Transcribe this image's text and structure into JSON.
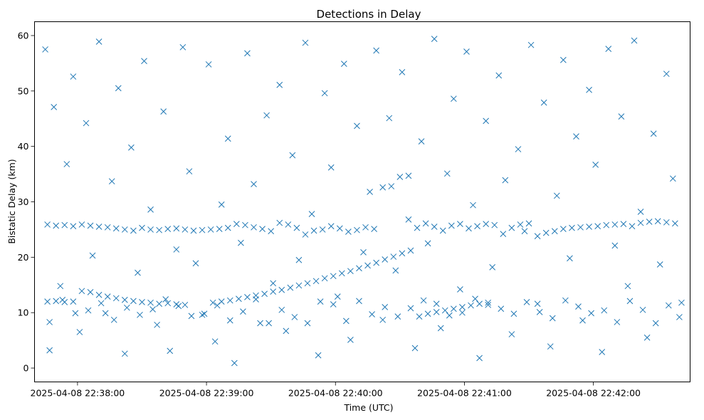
{
  "chart_data": {
    "type": "scatter",
    "title": "Detections in Delay",
    "xlabel": "Time (UTC)",
    "ylabel": "Bistatic Delay (km)",
    "x_tick_labels": [
      "2025-04-08 22:38:00",
      "2025-04-08 22:39:00",
      "2025-04-08 22:40:00",
      "2025-04-08 22:41:00",
      "2025-04-08 22:42:00"
    ],
    "x_ticks": [
      "2025-04-08 22:38:00",
      "2025-04-08 22:39:00",
      "2025-04-08 22:40:00",
      "2025-04-08 22:41:00",
      "2025-04-08 22:42:00"
    ],
    "y_ticks": [
      0,
      10,
      20,
      30,
      40,
      50,
      60
    ],
    "xlim": [
      "2025-04-08 22:37:40",
      "2025-04-08 22:42:45"
    ],
    "ylim": [
      -2.5,
      62.5
    ],
    "marker": "x",
    "color": "#1f77b4",
    "grid": false,
    "series": [
      {
        "x": [
          "2025-04-08 22:37:45",
          "2025-04-08 22:37:47",
          "2025-04-08 22:37:49",
          "2025-04-08 22:37:52",
          "2025-04-08 22:37:55",
          "2025-04-08 22:37:58",
          "2025-04-08 22:38:01",
          "2025-04-08 22:38:04",
          "2025-04-08 22:38:07",
          "2025-04-08 22:38:10",
          "2025-04-08 22:38:13",
          "2025-04-08 22:38:16",
          "2025-04-08 22:38:19",
          "2025-04-08 22:38:22",
          "2025-04-08 22:38:25",
          "2025-04-08 22:38:28",
          "2025-04-08 22:38:31",
          "2025-04-08 22:38:34",
          "2025-04-08 22:38:37",
          "2025-04-08 22:38:40",
          "2025-04-08 22:38:43",
          "2025-04-08 22:38:46",
          "2025-04-08 22:38:49",
          "2025-04-08 22:38:52",
          "2025-04-08 22:38:55",
          "2025-04-08 22:38:58",
          "2025-04-08 22:39:01",
          "2025-04-08 22:39:04",
          "2025-04-08 22:39:07",
          "2025-04-08 22:39:10",
          "2025-04-08 22:39:13",
          "2025-04-08 22:39:16",
          "2025-04-08 22:39:19",
          "2025-04-08 22:39:22",
          "2025-04-08 22:39:25",
          "2025-04-08 22:39:28",
          "2025-04-08 22:39:31",
          "2025-04-08 22:39:34",
          "2025-04-08 22:39:37",
          "2025-04-08 22:39:40",
          "2025-04-08 22:39:43",
          "2025-04-08 22:39:46",
          "2025-04-08 22:39:49",
          "2025-04-08 22:39:52",
          "2025-04-08 22:39:55",
          "2025-04-08 22:39:58",
          "2025-04-08 22:40:01",
          "2025-04-08 22:40:04",
          "2025-04-08 22:40:07",
          "2025-04-08 22:40:10",
          "2025-04-08 22:40:13",
          "2025-04-08 22:40:16",
          "2025-04-08 22:40:19",
          "2025-04-08 22:40:22",
          "2025-04-08 22:40:25",
          "2025-04-08 22:40:28",
          "2025-04-08 22:40:31",
          "2025-04-08 22:40:34",
          "2025-04-08 22:40:37",
          "2025-04-08 22:40:40",
          "2025-04-08 22:40:43",
          "2025-04-08 22:40:46",
          "2025-04-08 22:40:49",
          "2025-04-08 22:40:52",
          "2025-04-08 22:40:55",
          "2025-04-08 22:40:58",
          "2025-04-08 22:41:01",
          "2025-04-08 22:41:04",
          "2025-04-08 22:41:07",
          "2025-04-08 22:41:10",
          "2025-04-08 22:41:13",
          "2025-04-08 22:41:16",
          "2025-04-08 22:41:19",
          "2025-04-08 22:41:22",
          "2025-04-08 22:41:25",
          "2025-04-08 22:41:28",
          "2025-04-08 22:41:31",
          "2025-04-08 22:41:34",
          "2025-04-08 22:41:37",
          "2025-04-08 22:41:40",
          "2025-04-08 22:41:43",
          "2025-04-08 22:41:46",
          "2025-04-08 22:41:49",
          "2025-04-08 22:41:52",
          "2025-04-08 22:41:55",
          "2025-04-08 22:41:58",
          "2025-04-08 22:42:01",
          "2025-04-08 22:42:04",
          "2025-04-08 22:42:07",
          "2025-04-08 22:42:10",
          "2025-04-08 22:42:13",
          "2025-04-08 22:42:16",
          "2025-04-08 22:42:19",
          "2025-04-08 22:42:22",
          "2025-04-08 22:42:25",
          "2025-04-08 22:42:28",
          "2025-04-08 22:42:31",
          "2025-04-08 22:42:34",
          "2025-04-08 22:42:37",
          "2025-04-08 22:42:40",
          "2025-04-08 22:37:46",
          "2025-04-08 22:37:50",
          "2025-04-08 22:37:54",
          "2025-04-08 22:37:58",
          "2025-04-08 22:38:02",
          "2025-04-08 22:38:06",
          "2025-04-08 22:38:10",
          "2025-04-08 22:38:14",
          "2025-04-08 22:38:18",
          "2025-04-08 22:38:22",
          "2025-04-08 22:38:26",
          "2025-04-08 22:38:30",
          "2025-04-08 22:38:34",
          "2025-04-08 22:38:38",
          "2025-04-08 22:38:42",
          "2025-04-08 22:38:46",
          "2025-04-08 22:38:50",
          "2025-04-08 22:38:54",
          "2025-04-08 22:38:58",
          "2025-04-08 22:39:02",
          "2025-04-08 22:39:06",
          "2025-04-08 22:39:10",
          "2025-04-08 22:39:14",
          "2025-04-08 22:39:18",
          "2025-04-08 22:39:22",
          "2025-04-08 22:39:26",
          "2025-04-08 22:39:30",
          "2025-04-08 22:39:34",
          "2025-04-08 22:39:38",
          "2025-04-08 22:39:42",
          "2025-04-08 22:39:46",
          "2025-04-08 22:39:50",
          "2025-04-08 22:39:54",
          "2025-04-08 22:39:58",
          "2025-04-08 22:40:02",
          "2025-04-08 22:40:06",
          "2025-04-08 22:40:10",
          "2025-04-08 22:40:14",
          "2025-04-08 22:40:18",
          "2025-04-08 22:40:22",
          "2025-04-08 22:40:26",
          "2025-04-08 22:40:30",
          "2025-04-08 22:40:34",
          "2025-04-08 22:40:38",
          "2025-04-08 22:40:42",
          "2025-04-08 22:40:46",
          "2025-04-08 22:40:50",
          "2025-04-08 22:40:54",
          "2025-04-08 22:40:58",
          "2025-04-08 22:41:02",
          "2025-04-08 22:41:06",
          "2025-04-08 22:41:10",
          "2025-04-08 22:41:14",
          "2025-04-08 22:41:18",
          "2025-04-08 22:41:22",
          "2025-04-08 22:41:26",
          "2025-04-08 22:41:30",
          "2025-04-08 22:41:34",
          "2025-04-08 22:41:38",
          "2025-04-08 22:41:42",
          "2025-04-08 22:41:46",
          "2025-04-08 22:41:50",
          "2025-04-08 22:41:54",
          "2025-04-08 22:41:58",
          "2025-04-08 22:42:02",
          "2025-04-08 22:42:06",
          "2025-04-08 22:42:10",
          "2025-04-08 22:42:14",
          "2025-04-08 22:42:18",
          "2025-04-08 22:42:22",
          "2025-04-08 22:42:26",
          "2025-04-08 22:42:30",
          "2025-04-08 22:42:34",
          "2025-04-08 22:42:38",
          "2025-04-08 22:37:46",
          "2025-04-08 22:37:50",
          "2025-04-08 22:37:54",
          "2025-04-08 22:37:58",
          "2025-04-08 22:38:02",
          "2025-04-08 22:38:06",
          "2025-04-08 22:38:10",
          "2025-04-08 22:38:14",
          "2025-04-08 22:38:18",
          "2025-04-08 22:38:22",
          "2025-04-08 22:38:26",
          "2025-04-08 22:38:30",
          "2025-04-08 22:38:34",
          "2025-04-08 22:38:38",
          "2025-04-08 22:38:42",
          "2025-04-08 22:38:46",
          "2025-04-08 22:38:50",
          "2025-04-08 22:39:03",
          "2025-04-08 22:39:07",
          "2025-04-08 22:39:11",
          "2025-04-08 22:39:15",
          "2025-04-08 22:39:19",
          "2025-04-08 22:39:23",
          "2025-04-08 22:39:27",
          "2025-04-08 22:39:31",
          "2025-04-08 22:39:35",
          "2025-04-08 22:39:39",
          "2025-04-08 22:39:43",
          "2025-04-08 22:39:47",
          "2025-04-08 22:39:51",
          "2025-04-08 22:39:55",
          "2025-04-08 22:39:59",
          "2025-04-08 22:40:03",
          "2025-04-08 22:40:07",
          "2025-04-08 22:40:11",
          "2025-04-08 22:40:15",
          "2025-04-08 22:40:19",
          "2025-04-08 22:40:23",
          "2025-04-08 22:40:27",
          "2025-04-08 22:40:31",
          "2025-04-08 22:40:35",
          "2025-04-08 22:40:39",
          "2025-04-08 22:40:43",
          "2025-04-08 22:40:47",
          "2025-04-08 22:40:51",
          "2025-04-08 22:40:55",
          "2025-04-08 22:40:59",
          "2025-04-08 22:41:03",
          "2025-04-08 22:41:07",
          "2025-04-08 22:41:11",
          "2025-04-08 22:37:47",
          "2025-04-08 22:37:53",
          "2025-04-08 22:37:59",
          "2025-04-08 22:38:05",
          "2025-04-08 22:38:11",
          "2025-04-08 22:38:17",
          "2025-04-08 22:38:23",
          "2025-04-08 22:38:29",
          "2025-04-08 22:38:35",
          "2025-04-08 22:38:41",
          "2025-04-08 22:38:47",
          "2025-04-08 22:38:53",
          "2025-04-08 22:38:59",
          "2025-04-08 22:39:05",
          "2025-04-08 22:39:11",
          "2025-04-08 22:39:17",
          "2025-04-08 22:39:23",
          "2025-04-08 22:39:29",
          "2025-04-08 22:39:35",
          "2025-04-08 22:39:41",
          "2025-04-08 22:39:47",
          "2025-04-08 22:39:53",
          "2025-04-08 22:39:59",
          "2025-04-08 22:40:05",
          "2025-04-08 22:40:11",
          "2025-04-08 22:40:17",
          "2025-04-08 22:40:23",
          "2025-04-08 22:40:29",
          "2025-04-08 22:40:35",
          "2025-04-08 22:40:41",
          "2025-04-08 22:40:47",
          "2025-04-08 22:40:53",
          "2025-04-08 22:40:59",
          "2025-04-08 22:41:05",
          "2025-04-08 22:41:11",
          "2025-04-08 22:41:17",
          "2025-04-08 22:41:23",
          "2025-04-08 22:41:29",
          "2025-04-08 22:41:35",
          "2025-04-08 22:41:41",
          "2025-04-08 22:41:47",
          "2025-04-08 22:41:53",
          "2025-04-08 22:41:59",
          "2025-04-08 22:42:05",
          "2025-04-08 22:42:11",
          "2025-04-08 22:42:17",
          "2025-04-08 22:42:23",
          "2025-04-08 22:42:29",
          "2025-04-08 22:42:35",
          "2025-04-08 22:42:41"
        ],
        "y": [
          57.5,
          3.2,
          47.1,
          14.8,
          36.8,
          52.6,
          6.5,
          44.2,
          20.3,
          58.9,
          9.9,
          33.7,
          50.5,
          2.6,
          39.8,
          17.2,
          55.4,
          28.6,
          7.8,
          46.3,
          3.1,
          21.4,
          57.9,
          35.5,
          18.9,
          9.6,
          54.8,
          4.8,
          29.5,
          41.4,
          0.9,
          22.6,
          56.8,
          33.2,
          8.1,
          45.6,
          15.3,
          51.1,
          6.7,
          38.4,
          19.5,
          58.7,
          27.8,
          2.3,
          49.6,
          36.2,
          12.9,
          54.9,
          5.1,
          43.7,
          20.9,
          31.8,
          57.3,
          8.7,
          45.1,
          17.6,
          53.4,
          26.8,
          3.6,
          40.9,
          22.5,
          59.4,
          7.2,
          35.1,
          48.6,
          14.2,
          57.1,
          29.4,
          1.8,
          44.6,
          18.2,
          52.8,
          33.9,
          6.1,
          39.5,
          24.7,
          58.3,
          11.6,
          47.9,
          3.9,
          31.1,
          55.6,
          19.8,
          41.8,
          8.6,
          50.2,
          36.7,
          2.9,
          57.6,
          22.1,
          45.4,
          14.8,
          59.1,
          28.2,
          5.5,
          42.3,
          18.7,
          53.1,
          34.2,
          9.2,
          25.9,
          25.7,
          25.8,
          25.6,
          25.9,
          25.7,
          25.5,
          25.4,
          25.2,
          25.0,
          24.8,
          25.3,
          25.0,
          24.9,
          25.1,
          25.2,
          25.0,
          24.8,
          24.9,
          25.0,
          25.1,
          25.3,
          26.0,
          25.8,
          25.4,
          25.1,
          24.7,
          26.2,
          25.9,
          25.3,
          24.1,
          24.8,
          25.0,
          25.6,
          25.2,
          24.6,
          24.9,
          25.4,
          25.1,
          32.6,
          32.8,
          34.5,
          34.7,
          25.3,
          26.1,
          25.5,
          24.8,
          25.7,
          26.0,
          25.2,
          25.6,
          26.0,
          25.8,
          24.2,
          25.3,
          25.9,
          26.1,
          23.8,
          24.4,
          24.7,
          25.1,
          25.3,
          25.4,
          25.5,
          25.6,
          25.8,
          25.9,
          26.0,
          25.6,
          26.2,
          26.4,
          26.5,
          26.3,
          26.1,
          12.0,
          12.1,
          11.9,
          12.0,
          13.9,
          13.7,
          13.2,
          12.9,
          12.6,
          12.3,
          12.1,
          11.9,
          11.8,
          11.6,
          11.7,
          11.5,
          11.4,
          11.8,
          12.0,
          12.2,
          12.5,
          12.8,
          13.1,
          13.4,
          13.8,
          14.1,
          14.5,
          14.9,
          15.3,
          15.7,
          16.2,
          16.6,
          17.1,
          17.5,
          18.0,
          18.5,
          19.0,
          19.6,
          20.1,
          20.7,
          21.2,
          9.3,
          9.8,
          10.1,
          10.4,
          10.7,
          11.0,
          11.3,
          11.6,
          11.8,
          8.3,
          12.3,
          9.9,
          10.4,
          11.7,
          8.7,
          10.9,
          9.6,
          10.6,
          12.4,
          11.2,
          9.4,
          9.8,
          11.3,
          8.6,
          10.2,
          12.4,
          8.1,
          10.5,
          9.2,
          8.1,
          12.0,
          11.5,
          8.5,
          12.1,
          9.7,
          11.0,
          9.3,
          10.8,
          12.2,
          11.6,
          9.5,
          10.0,
          12.5,
          11.4,
          10.7,
          9.8,
          11.9,
          10.1,
          9.0,
          12.2,
          11.1,
          9.9,
          10.4,
          8.3,
          12.1,
          10.5,
          8.1,
          11.3,
          11.8
        ]
      }
    ]
  }
}
